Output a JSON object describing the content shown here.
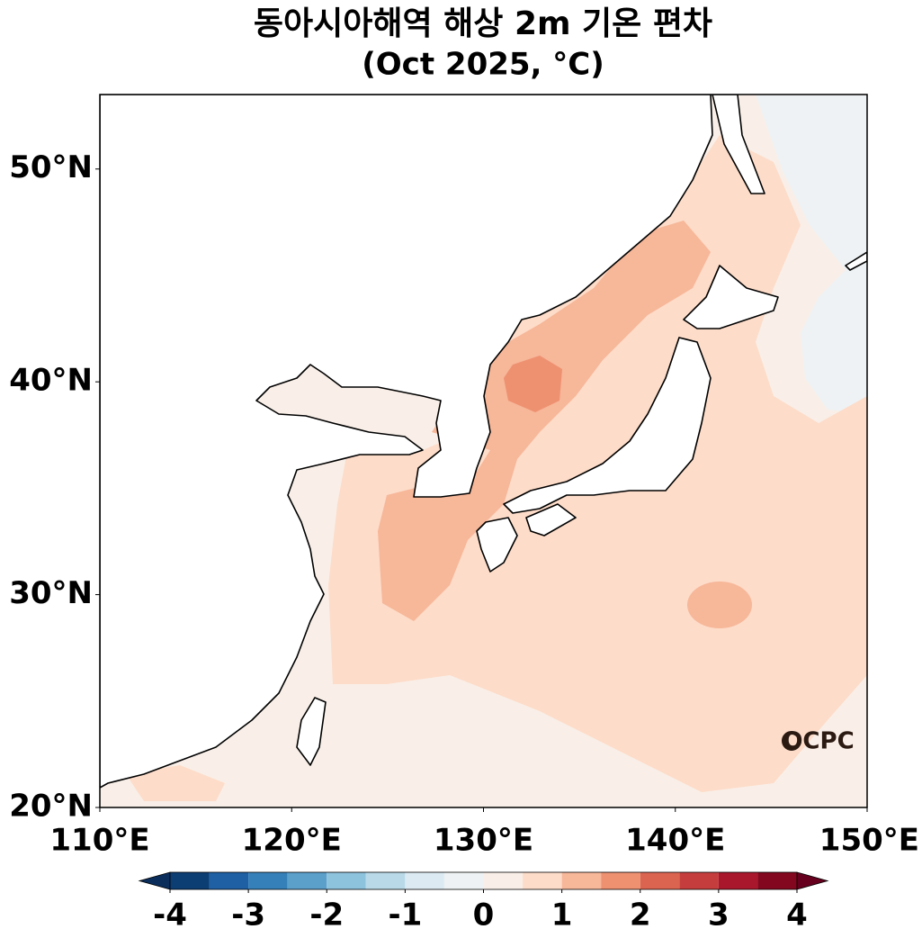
{
  "title": "동아시아해역 해상 2m 기온 편차",
  "subtitle": "(Oct 2025, °C)",
  "map": {
    "xlim": [
      110,
      150
    ],
    "ylim": [
      20,
      53.5
    ],
    "xticks": [
      {
        "value": 110,
        "label": "110°E"
      },
      {
        "value": 120,
        "label": "120°E"
      },
      {
        "value": 130,
        "label": "130°E"
      },
      {
        "value": 140,
        "label": "140°E"
      },
      {
        "value": 150,
        "label": "150°E"
      }
    ],
    "yticks": [
      {
        "value": 20,
        "label": "20°N"
      },
      {
        "value": 30,
        "label": "30°N"
      },
      {
        "value": 40,
        "label": "40°N"
      },
      {
        "value": 50,
        "label": "50°N"
      }
    ]
  },
  "colorbar": {
    "levels": [
      -4,
      -3.5,
      -3,
      -2.5,
      -2,
      -1.5,
      -1,
      -0.5,
      0,
      0.5,
      1,
      1.5,
      2,
      2.5,
      3,
      3.5,
      4
    ],
    "ticks": [
      -4,
      -3,
      -2,
      -1,
      0,
      1,
      2,
      3,
      4
    ],
    "colors": [
      "#0c3d73",
      "#1f5fa3",
      "#3580b9",
      "#5aa0cb",
      "#8ec3de",
      "#b9d9e9",
      "#dcebf3",
      "#eef2f4",
      "#f9efe8",
      "#fddcc9",
      "#f7b799",
      "#ee9171",
      "#db6450",
      "#c53e3d",
      "#a8172b",
      "#83081f"
    ],
    "extend_colors": [
      "#0a2d5c",
      "#67001f"
    ]
  },
  "logo": "OCPC"
}
